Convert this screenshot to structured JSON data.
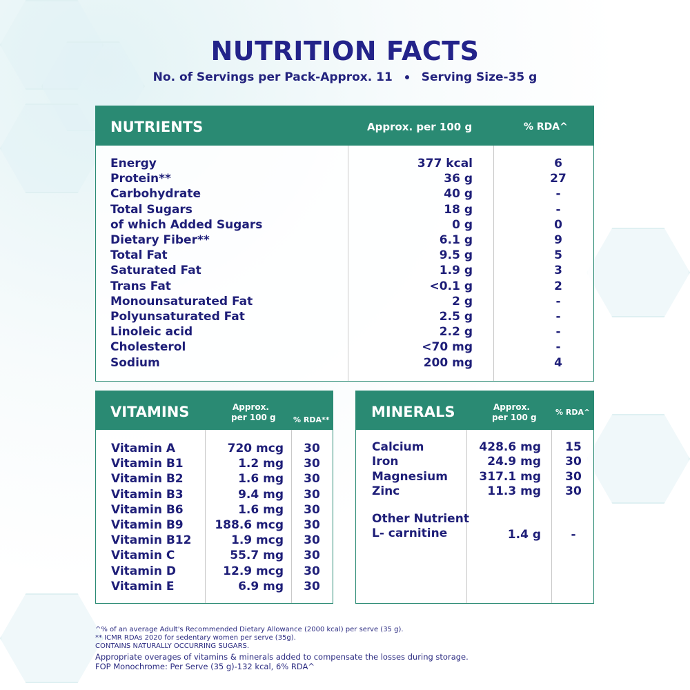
{
  "title": "NUTRITION FACTS",
  "servings": "No. of Servings per Pack-Approx. 11",
  "serving_size": "Serving Size-35 g",
  "colors": {
    "header": "#2a8a73",
    "text": "#1e1e78"
  },
  "nutrients": {
    "headers": [
      "NUTRIENTS",
      "Approx. per 100 g",
      "% RDA^"
    ],
    "rows": [
      [
        "Energy",
        "377 kcal",
        "6"
      ],
      [
        "Protein**",
        "36 g",
        "27"
      ],
      [
        "Carbohydrate",
        "40 g",
        "-"
      ],
      [
        "Total Sugars",
        "18 g",
        "-"
      ],
      [
        "of which Added Sugars",
        "0 g",
        "0"
      ],
      [
        "Dietary Fiber**",
        "6.1 g",
        "9"
      ],
      [
        "Total Fat",
        "9.5 g",
        "5"
      ],
      [
        "Saturated Fat",
        "1.9 g",
        "3"
      ],
      [
        "Trans Fat",
        "<0.1 g",
        "2"
      ],
      [
        "Monounsaturated Fat",
        "2 g",
        "-"
      ],
      [
        "Polyunsaturated Fat",
        "2.5 g",
        "-"
      ],
      [
        "Linoleic acid",
        "2.2 g",
        "-"
      ],
      [
        "Cholesterol",
        "<70 mg",
        "-"
      ],
      [
        "Sodium",
        "200 mg",
        "4"
      ]
    ]
  },
  "vitamins": {
    "headers": [
      "VITAMINS",
      "Approx.",
      "per 100 g",
      "% RDA**"
    ],
    "rows": [
      [
        "Vitamin A",
        "720 mcg",
        "30"
      ],
      [
        "Vitamin B1",
        "1.2 mg",
        "30"
      ],
      [
        "Vitamin B2",
        "1.6 mg",
        "30"
      ],
      [
        "Vitamin B3",
        "9.4 mg",
        "30"
      ],
      [
        "Vitamin B6",
        "1.6 mg",
        "30"
      ],
      [
        "Vitamin B9",
        "188.6 mcg",
        "30"
      ],
      [
        "Vitamin B12",
        "1.9 mcg",
        "30"
      ],
      [
        "Vitamin C",
        "55.7 mg",
        "30"
      ],
      [
        "Vitamin D",
        "12.9 mcg",
        "30"
      ],
      [
        "Vitamin E",
        "6.9 mg",
        "30"
      ]
    ]
  },
  "minerals": {
    "headers": [
      "MINERALS",
      "Approx.",
      "per 100 g",
      "% RDA^"
    ],
    "rows": [
      [
        "Calcium",
        "428.6 mg",
        "15"
      ],
      [
        "Iron",
        "24.9 mg",
        "30"
      ],
      [
        "Magnesium",
        "317.1 mg",
        "30"
      ],
      [
        "Zinc",
        "11.3 mg",
        "30"
      ]
    ],
    "other_label": "Other Nutrient",
    "other": [
      "L- carnitine",
      "1.4 g",
      "-"
    ]
  },
  "footnotes": [
    "^% of an average Adult's Recommended Dietary Allowance (2000 kcal) per serve (35 g).",
    "** ICMR RDAs 2020 for sedentary women per serve (35g).",
    "CONTAINS NATURALLY OCCURRING SUGARS."
  ],
  "footnotes_large": [
    "Appropriate overages of vitamins & minerals added to compensate the losses during storage.",
    "FOP Monochrome: Per Serve (35 g)-132 kcal, 6% RDA^"
  ]
}
